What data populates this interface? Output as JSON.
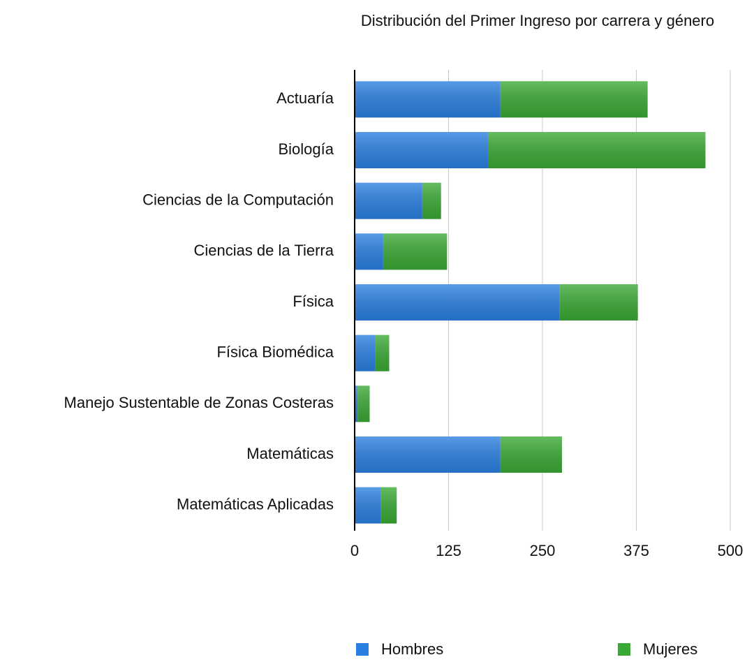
{
  "chart_data": {
    "type": "stacked_barh",
    "title": "Distribución del Primer Ingreso por carrera y género",
    "categories": [
      "Actuaría",
      "Biología",
      "Ciencias de la Computación",
      "Ciencias de la Tierra",
      "Física",
      "Física Biomédica",
      "Manejo Sustentable de Zonas Costeras",
      "Matemáticas",
      "Matemáticas Aplicadas"
    ],
    "series": [
      {
        "name": "Hombres",
        "color": "#2a7fe0",
        "values": [
          194,
          178,
          90,
          38,
          273,
          27,
          4,
          194,
          35
        ]
      },
      {
        "name": "Mujeres",
        "color": "#3aa835",
        "values": [
          196,
          289,
          25,
          85,
          104,
          19,
          16,
          82,
          21
        ]
      }
    ],
    "xlim": [
      0,
      500
    ],
    "xticks": [
      0,
      125,
      250,
      375,
      500
    ],
    "grid": true
  }
}
